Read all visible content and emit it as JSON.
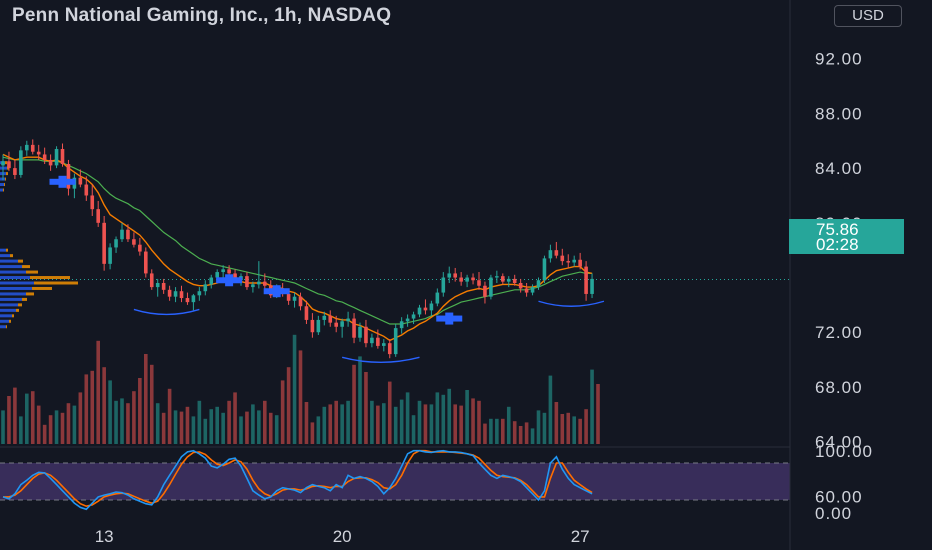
{
  "header": {
    "title": "Penn National Gaming, Inc., 1h, NASDAQ",
    "currency": "USD"
  },
  "last_price": {
    "value": "75.86",
    "countdown": "02:28",
    "color": "#26a69a"
  },
  "colors": {
    "background": "#131722",
    "up": "#26a69a",
    "down": "#ef5350",
    "ema_fast": "#f57c00",
    "ema_slow": "#4caf50",
    "signal_marker": "#2962ff",
    "stoch_k": "#2196f3",
    "stoch_d": "#ff6d00",
    "stoch_band": "#7e57c2",
    "volume_profile_buy": "#2962ff",
    "volume_profile_sell": "#ff9800"
  },
  "chart_data": [
    {
      "type": "candlestick",
      "title": "Penn National Gaming, Inc., 1h, NASDAQ",
      "y_axis_ticks": [
        "92.00",
        "88.00",
        "84.00",
        "80.00",
        "72.00",
        "68.00",
        "64.00",
        "60.00"
      ],
      "ylim": [
        57.4,
        94.1
      ],
      "x_axis_ticks": [
        {
          "label": "13",
          "bar": 17
        },
        {
          "label": "20",
          "bar": 57
        },
        {
          "label": "27",
          "bar": 97
        }
      ],
      "ohlc": [
        [
          84.2,
          85.0,
          83.1,
          84.5
        ],
        [
          84.5,
          85.2,
          83.8,
          84.0
        ],
        [
          84.0,
          84.6,
          83.2,
          83.5
        ],
        [
          83.5,
          85.6,
          83.3,
          85.3
        ],
        [
          85.3,
          86.0,
          84.9,
          85.7
        ],
        [
          85.7,
          86.1,
          85.0,
          85.2
        ],
        [
          85.2,
          85.7,
          84.6,
          85.0
        ],
        [
          85.0,
          85.5,
          84.3,
          84.6
        ],
        [
          84.6,
          85.0,
          83.8,
          84.2
        ],
        [
          84.2,
          85.6,
          84.0,
          85.4
        ],
        [
          85.4,
          85.8,
          84.1,
          84.3
        ],
        [
          84.3,
          84.6,
          82.0,
          82.5
        ],
        [
          82.5,
          83.6,
          81.8,
          83.3
        ],
        [
          83.3,
          83.9,
          82.6,
          82.8
        ],
        [
          82.8,
          83.4,
          81.6,
          82.0
        ],
        [
          82.0,
          82.8,
          80.5,
          81.0
        ],
        [
          81.0,
          81.6,
          79.7,
          80.0
        ],
        [
          80.0,
          80.5,
          76.5,
          77.0
        ],
        [
          77.0,
          78.5,
          76.6,
          78.2
        ],
        [
          78.2,
          79.0,
          77.8,
          78.8
        ],
        [
          78.8,
          80.0,
          78.6,
          79.5
        ],
        [
          79.5,
          79.9,
          78.6,
          78.8
        ],
        [
          78.8,
          79.3,
          78.2,
          78.4
        ],
        [
          78.4,
          78.9,
          77.6,
          77.9
        ],
        [
          77.9,
          78.2,
          76.0,
          76.3
        ],
        [
          76.3,
          76.6,
          75.1,
          75.3
        ],
        [
          75.3,
          75.9,
          74.6,
          75.6
        ],
        [
          75.6,
          75.9,
          74.8,
          75.1
        ],
        [
          75.1,
          75.4,
          74.3,
          74.6
        ],
        [
          74.6,
          75.3,
          74.2,
          75.0
        ],
        [
          75.0,
          75.4,
          74.2,
          74.5
        ],
        [
          74.5,
          74.9,
          74.0,
          74.2
        ],
        [
          74.2,
          74.8,
          73.6,
          74.7
        ],
        [
          74.7,
          75.3,
          74.3,
          75.0
        ],
        [
          75.0,
          75.8,
          74.7,
          75.5
        ],
        [
          75.5,
          76.2,
          75.2,
          76.0
        ],
        [
          76.0,
          76.6,
          75.6,
          76.4
        ],
        [
          76.4,
          76.9,
          76.0,
          76.6
        ],
        [
          76.6,
          76.9,
          76.1,
          76.3
        ],
        [
          76.3,
          76.6,
          75.6,
          75.8
        ],
        [
          75.8,
          76.3,
          75.4,
          76.1
        ],
        [
          76.1,
          76.4,
          75.1,
          75.3
        ],
        [
          75.3,
          75.7,
          74.9,
          75.5
        ],
        [
          75.5,
          77.2,
          75.2,
          75.7
        ],
        [
          75.7,
          76.3,
          75.2,
          75.4
        ],
        [
          75.4,
          75.8,
          74.5,
          74.7
        ],
        [
          74.7,
          75.5,
          74.5,
          75.2
        ],
        [
          75.2,
          75.6,
          74.6,
          74.8
        ],
        [
          74.8,
          75.1,
          74.0,
          74.3
        ],
        [
          74.3,
          74.9,
          73.8,
          74.6
        ],
        [
          74.6,
          74.9,
          73.6,
          73.9
        ],
        [
          73.9,
          74.3,
          72.6,
          72.9
        ],
        [
          72.9,
          73.4,
          71.6,
          72.0
        ],
        [
          72.0,
          73.2,
          71.8,
          72.9
        ],
        [
          72.9,
          73.5,
          72.5,
          73.2
        ],
        [
          73.2,
          73.6,
          72.4,
          72.7
        ],
        [
          72.7,
          73.2,
          72.0,
          72.4
        ],
        [
          72.4,
          73.0,
          71.6,
          72.8
        ],
        [
          72.8,
          73.5,
          72.4,
          73.0
        ],
        [
          73.0,
          73.4,
          71.2,
          71.6
        ],
        [
          71.6,
          72.7,
          71.3,
          72.4
        ],
        [
          72.4,
          72.9,
          70.9,
          71.2
        ],
        [
          71.2,
          71.9,
          70.9,
          71.6
        ],
        [
          71.6,
          72.2,
          70.8,
          71.0
        ],
        [
          71.0,
          71.5,
          70.6,
          71.2
        ],
        [
          71.2,
          71.5,
          70.1,
          70.4
        ],
        [
          70.4,
          72.6,
          70.2,
          72.3
        ],
        [
          72.3,
          73.1,
          71.9,
          72.8
        ],
        [
          72.8,
          73.3,
          72.4,
          73.0
        ],
        [
          73.0,
          73.5,
          72.6,
          73.3
        ],
        [
          73.3,
          74.0,
          73.1,
          73.8
        ],
        [
          73.8,
          74.4,
          73.3,
          73.6
        ],
        [
          73.6,
          74.3,
          73.2,
          74.1
        ],
        [
          74.1,
          75.2,
          73.9,
          74.9
        ],
        [
          74.9,
          76.4,
          74.6,
          76.0
        ],
        [
          76.0,
          76.8,
          75.6,
          76.3
        ],
        [
          76.3,
          76.7,
          75.7,
          76.0
        ],
        [
          76.0,
          76.4,
          75.4,
          75.7
        ],
        [
          75.7,
          76.2,
          75.3,
          76.0
        ],
        [
          76.0,
          76.3,
          75.5,
          75.8
        ],
        [
          75.8,
          76.4,
          75.1,
          75.4
        ],
        [
          75.4,
          75.7,
          74.1,
          74.6
        ],
        [
          74.6,
          76.2,
          74.4,
          76.0
        ],
        [
          76.0,
          76.5,
          75.6,
          76.1
        ],
        [
          76.1,
          76.3,
          75.5,
          75.7
        ],
        [
          75.7,
          76.1,
          75.3,
          75.9
        ],
        [
          75.9,
          76.2,
          75.4,
          75.6
        ],
        [
          75.6,
          75.9,
          74.9,
          75.2
        ],
        [
          75.2,
          75.6,
          74.6,
          74.9
        ],
        [
          74.9,
          75.5,
          74.7,
          75.3
        ],
        [
          75.3,
          76.0,
          75.1,
          75.8
        ],
        [
          75.8,
          77.6,
          75.6,
          77.4
        ],
        [
          77.4,
          78.4,
          77.1,
          78.0
        ],
        [
          78.0,
          78.6,
          77.4,
          77.6
        ],
        [
          77.6,
          78.1,
          76.9,
          77.2
        ],
        [
          77.2,
          77.7,
          76.7,
          77.1
        ],
        [
          77.1,
          77.6,
          76.8,
          77.3
        ],
        [
          77.3,
          77.8,
          76.6,
          76.8
        ],
        [
          76.8,
          77.2,
          74.3,
          74.8
        ],
        [
          74.8,
          76.3,
          74.5,
          75.9
        ]
      ],
      "ema_fast": [
        85.0,
        84.8,
        84.6,
        84.7,
        84.8,
        84.8,
        84.8,
        84.6,
        84.5,
        84.6,
        84.4,
        84.0,
        83.7,
        83.4,
        83.2,
        82.8,
        82.2,
        81.3,
        80.6,
        80.3,
        80.0,
        79.7,
        79.4,
        79.1,
        78.6,
        78.0,
        77.5,
        77.0,
        76.6,
        76.3,
        76.0,
        75.7,
        75.5,
        75.4,
        75.4,
        75.5,
        75.6,
        75.8,
        75.8,
        75.7,
        75.7,
        75.6,
        75.6,
        75.6,
        75.6,
        75.4,
        75.3,
        75.2,
        75.0,
        74.9,
        74.6,
        74.2,
        73.7,
        73.5,
        73.4,
        73.2,
        73.0,
        72.9,
        72.9,
        72.6,
        72.5,
        72.3,
        72.1,
        71.9,
        71.7,
        71.4,
        71.6,
        71.8,
        72.1,
        72.3,
        72.6,
        72.8,
        73.1,
        73.4,
        73.9,
        74.3,
        74.6,
        74.8,
        75.0,
        75.1,
        75.2,
        75.1,
        75.3,
        75.4,
        75.5,
        75.5,
        75.5,
        75.4,
        75.3,
        75.3,
        75.4,
        75.8,
        76.2,
        76.5,
        76.6,
        76.7,
        76.8,
        76.8,
        76.4,
        76.3
      ],
      "ema_slow": [
        84.8,
        84.7,
        84.6,
        84.6,
        84.6,
        84.6,
        84.6,
        84.5,
        84.5,
        84.5,
        84.4,
        84.2,
        84.0,
        83.8,
        83.6,
        83.3,
        83.0,
        82.5,
        82.1,
        81.8,
        81.6,
        81.4,
        81.1,
        80.9,
        80.5,
        80.1,
        79.7,
        79.3,
        79.0,
        78.7,
        78.3,
        78.0,
        77.7,
        77.4,
        77.2,
        77.0,
        76.9,
        76.8,
        76.7,
        76.6,
        76.5,
        76.4,
        76.3,
        76.2,
        76.1,
        76.0,
        75.9,
        75.8,
        75.7,
        75.6,
        75.4,
        75.2,
        75.0,
        74.8,
        74.7,
        74.5,
        74.3,
        74.2,
        74.0,
        73.8,
        73.6,
        73.4,
        73.2,
        73.0,
        72.8,
        72.6,
        72.6,
        72.6,
        72.7,
        72.8,
        72.9,
        73.0,
        73.2,
        73.3,
        73.6,
        73.8,
        74.0,
        74.2,
        74.3,
        74.4,
        74.5,
        74.6,
        74.7,
        74.8,
        74.9,
        75.0,
        75.1,
        75.1,
        75.1,
        75.2,
        75.3,
        75.5,
        75.7,
        75.9,
        76.1,
        76.2,
        76.3,
        76.4,
        76.3,
        76.3
      ],
      "signal_markers": [
        {
          "bar": 10,
          "price": 83.0
        },
        {
          "bar": 38,
          "price": 75.8
        },
        {
          "bar": 46,
          "price": 75.0
        },
        {
          "bar": 75,
          "price": 73.0
        }
      ],
      "rounded_patterns": [
        {
          "from_bar": 22,
          "to_bar": 33,
          "bottom_price": 73.3
        },
        {
          "from_bar": 57,
          "to_bar": 70,
          "bottom_price": 69.8
        },
        {
          "from_bar": 90,
          "to_bar": 101,
          "bottom_price": 73.9
        }
      ]
    },
    {
      "type": "bar",
      "name": "volume",
      "values": [
        2.8,
        4.0,
        4.7,
        2.3,
        4.2,
        4.4,
        3.2,
        1.6,
        2.4,
        2.8,
        2.6,
        3.4,
        3.2,
        4.3,
        5.8,
        6.1,
        8.6,
        6.4,
        5.3,
        3.6,
        3.8,
        3.4,
        4.4,
        5.5,
        7.5,
        6.6,
        3.4,
        2.6,
        4.6,
        2.8,
        2.7,
        3.1,
        2.3,
        3.6,
        2.1,
        2.9,
        3.1,
        2.6,
        3.6,
        4.3,
        2.3,
        2.7,
        3.3,
        2.8,
        3.6,
        2.6,
        2.4,
        5.3,
        6.4,
        9.1,
        7.8,
        3.5,
        1.8,
        2.3,
        3.1,
        3.3,
        3.6,
        3.3,
        3.6,
        6.6,
        7.3,
        6.0,
        3.6,
        3.2,
        3.4,
        5.2,
        3.1,
        3.7,
        4.3,
        2.4,
        3.6,
        3.3,
        3.3,
        4.3,
        4.1,
        4.6,
        3.3,
        3.2,
        4.5,
        3.8,
        3.6,
        1.7,
        2.1,
        2.1,
        2.1,
        3.1,
        1.9,
        1.5,
        1.8,
        1.3,
        2.8,
        2.6,
        5.7,
        3.5,
        2.5,
        2.6,
        2.3,
        2.1,
        2.9,
        6.2,
        5.0
      ],
      "up_down": "follows candle direction"
    },
    {
      "type": "line",
      "name": "stochastic",
      "y_axis_ticks": [
        "100.00",
        "0.00"
      ],
      "ylim": [
        0,
        100
      ],
      "band": [
        20,
        80
      ],
      "k": [
        25,
        22,
        30,
        45,
        52,
        60,
        65,
        64,
        55,
        45,
        35,
        25,
        15,
        8,
        5,
        15,
        25,
        28,
        30,
        33,
        32,
        28,
        22,
        18,
        14,
        12,
        25,
        45,
        60,
        75,
        90,
        98,
        100,
        95,
        88,
        75,
        72,
        78,
        86,
        88,
        75,
        55,
        35,
        28,
        22,
        25,
        35,
        40,
        38,
        36,
        32,
        40,
        45,
        42,
        40,
        35,
        45,
        40,
        60,
        55,
        58,
        55,
        50,
        42,
        30,
        40,
        55,
        75,
        95,
        100,
        100,
        98,
        97,
        99,
        100,
        98,
        98,
        97,
        95,
        92,
        80,
        70,
        60,
        55,
        60,
        58,
        55,
        50,
        40,
        30,
        20,
        35,
        80,
        90,
        70,
        55,
        45,
        40,
        35,
        30
      ],
      "d": [
        25,
        25,
        28,
        35,
        45,
        55,
        62,
        64,
        60,
        52,
        42,
        32,
        22,
        14,
        10,
        12,
        18,
        25,
        28,
        30,
        31,
        30,
        26,
        22,
        18,
        15,
        18,
        30,
        45,
        62,
        78,
        90,
        97,
        98,
        94,
        85,
        78,
        76,
        80,
        85,
        82,
        70,
        52,
        38,
        30,
        26,
        30,
        36,
        38,
        38,
        36,
        38,
        42,
        43,
        42,
        40,
        42,
        42,
        50,
        55,
        56,
        56,
        53,
        48,
        40,
        38,
        45,
        60,
        80,
        95,
        100,
        100,
        98,
        98,
        98,
        98,
        97,
        96,
        95,
        93,
        88,
        78,
        68,
        60,
        58,
        57,
        56,
        52,
        45,
        35,
        25,
        25,
        55,
        80,
        80,
        65,
        52,
        45,
        38,
        32
      ]
    }
  ]
}
